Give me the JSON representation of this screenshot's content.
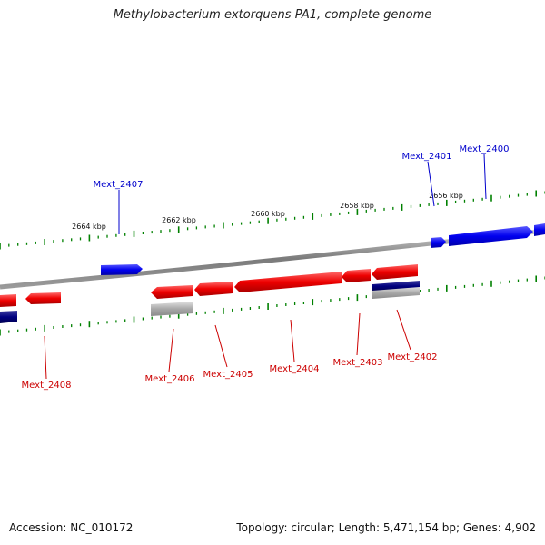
{
  "title": "Methylobacterium extorquens PA1, complete genome",
  "footer": {
    "accession": "Accession: NC_010172",
    "summary": "Topology: circular; Length: 5,471,154 bp; Genes: 4,902"
  },
  "scale_labels": [
    "2664 kbp",
    "2662 kbp",
    "2660 kbp",
    "2658 kbp",
    "2656 kbp"
  ],
  "genes_top": [
    {
      "label": "Mext_2407",
      "color": "#0000cc"
    },
    {
      "label": "Mext_2401",
      "color": "#0000cc"
    },
    {
      "label": "Mext_2400",
      "color": "#0000cc"
    }
  ],
  "genes_bottom": [
    {
      "label": "Mext_2408",
      "color": "#cc0000"
    },
    {
      "label": "Mext_2406",
      "color": "#cc0000"
    },
    {
      "label": "Mext_2405",
      "color": "#cc0000"
    },
    {
      "label": "Mext_2404",
      "color": "#cc0000"
    },
    {
      "label": "Mext_2403",
      "color": "#cc0000"
    },
    {
      "label": "Mext_2402",
      "color": "#cc0000"
    }
  ],
  "colors": {
    "forward_strand": "#0000ee",
    "reverse_strand": "#ee0000",
    "rna": "#a0a0a0",
    "dark_feature": "#000080",
    "backbone": "#808080",
    "ticks": "#008000"
  }
}
